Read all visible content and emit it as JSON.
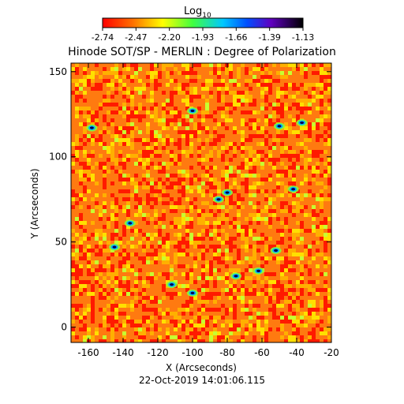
{
  "chart_data": {
    "type": "heatmap",
    "title": "Hinode SOT/SP - MERLIN : Degree of Polarization",
    "colorbar": {
      "label": "Log",
      "label_subscript": "10",
      "ticks": [
        "-2.74",
        "-2.47",
        "-2.20",
        "-1.93",
        "-1.66",
        "-1.39",
        "-1.13"
      ],
      "range": [
        -2.74,
        -1.13
      ],
      "colormap": "rainbow (red to black)"
    },
    "xlabel": "X (Arcseconds)",
    "ylabel": "Y (Arcseconds)",
    "xlim": [
      -170,
      -20
    ],
    "ylim": [
      -9,
      155
    ],
    "xticks": [
      -160,
      -140,
      -120,
      -100,
      -80,
      -60,
      -40,
      -20
    ],
    "yticks": [
      0,
      50,
      100,
      150
    ],
    "background_color": "#ff7a10",
    "low_polarization_patches": [
      {
        "x": -158,
        "y": 117
      },
      {
        "x": -145,
        "y": 47
      },
      {
        "x": -136,
        "y": 61
      },
      {
        "x": -112,
        "y": 25
      },
      {
        "x": -100,
        "y": 20
      },
      {
        "x": -100,
        "y": 127
      },
      {
        "x": -85,
        "y": 75
      },
      {
        "x": -80,
        "y": 79
      },
      {
        "x": -75,
        "y": 30
      },
      {
        "x": -62,
        "y": 33
      },
      {
        "x": -52,
        "y": 45
      },
      {
        "x": -50,
        "y": 118
      },
      {
        "x": -42,
        "y": 81
      },
      {
        "x": -37,
        "y": 120
      }
    ]
  },
  "footer": {
    "timestamp": "22-Oct-2019 14:01:06.115"
  }
}
